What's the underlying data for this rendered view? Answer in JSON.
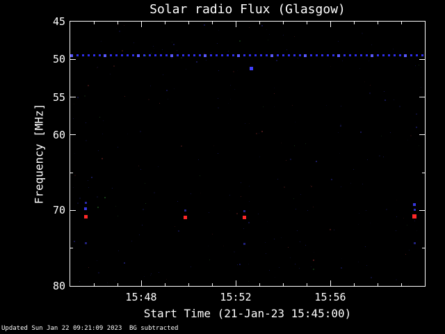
{
  "chart_data": {
    "type": "scatter",
    "title": "Solar radio Flux (Glasgow)",
    "xlabel": "Start Time (21-Jan-23 15:45:00)",
    "ylabel": "Frequency [MHz]",
    "x_start_time": "15:45:00",
    "x_range_minutes": [
      0,
      15
    ],
    "x_major_ticks": [
      {
        "minute": 3,
        "label": "15:48"
      },
      {
        "minute": 7,
        "label": "15:52"
      },
      {
        "minute": 11,
        "label": "15:56"
      }
    ],
    "x_minor_tick_step_minutes": 1,
    "y_range": [
      45,
      80
    ],
    "y_major_ticks": [
      45,
      50,
      55,
      60,
      70,
      80
    ],
    "y_minor_ticks": [
      65,
      75
    ],
    "grid": "off",
    "legend": "none",
    "plot_background": "#000000",
    "axis_color": "#ffffff",
    "interference_line": {
      "frequency": 49.5,
      "style": "dotted",
      "span": "full-width",
      "color": "#2d2df0",
      "bright_color": "#5a5aff"
    },
    "points": [
      {
        "t_min": 7.67,
        "freq_mhz": 51.2,
        "color": "#4040ff",
        "size": 5
      },
      {
        "t_min": 0.65,
        "freq_mhz": 70.8,
        "color": "#ff2828",
        "size": 5
      },
      {
        "t_min": 4.88,
        "freq_mhz": 70.9,
        "color": "#ff2828",
        "size": 5
      },
      {
        "t_min": 7.38,
        "freq_mhz": 70.9,
        "color": "#ff2828",
        "size": 5
      },
      {
        "t_min": 14.56,
        "freq_mhz": 70.8,
        "color": "#ff2828",
        "size": 6
      },
      {
        "t_min": 0.65,
        "freq_mhz": 69.8,
        "color": "#3838e0",
        "size": 4
      },
      {
        "t_min": 0.65,
        "freq_mhz": 69.0,
        "color": "#2828a8",
        "size": 3
      },
      {
        "t_min": 14.56,
        "freq_mhz": 69.2,
        "color": "#3838e0",
        "size": 4
      },
      {
        "t_min": 14.56,
        "freq_mhz": 69.9,
        "color": "#2c2cc0",
        "size": 3
      },
      {
        "t_min": 4.88,
        "freq_mhz": 70.0,
        "color": "#26268a",
        "size": 3
      },
      {
        "t_min": 7.38,
        "freq_mhz": 70.1,
        "color": "#26268a",
        "size": 3
      },
      {
        "t_min": 0.65,
        "freq_mhz": 74.3,
        "color": "#20207a",
        "size": 3
      },
      {
        "t_min": 7.38,
        "freq_mhz": 74.4,
        "color": "#20207a",
        "size": 3
      },
      {
        "t_min": 14.56,
        "freq_mhz": 74.3,
        "color": "#20207a",
        "size": 3
      },
      {
        "t_min": 2.3,
        "freq_mhz": 77.0,
        "color": "#1a1a60",
        "size": 2
      },
      {
        "t_min": 10.4,
        "freq_mhz": 63.5,
        "color": "#1a1a60",
        "size": 2
      }
    ],
    "noise": {
      "count": 260,
      "colors": {
        "blue": "#4040ff",
        "red": "#ff5050",
        "green": "#40c040"
      },
      "max_opacity": 0.28
    }
  },
  "footer": {
    "updated": "Updated Sun Jan 22 09:21:09 2023",
    "note": "BG subtracted"
  }
}
